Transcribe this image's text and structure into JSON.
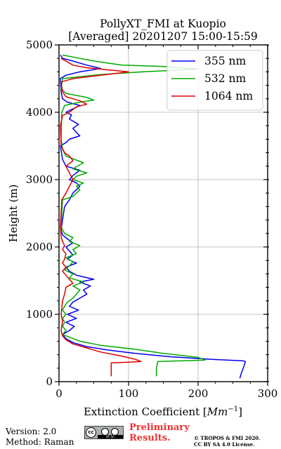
{
  "chart_data": {
    "type": "line",
    "title": "PollyXT_FMI at Kuopio",
    "subtitle": "[Averaged] 20201207 15:00-15:59",
    "xlabel": "Extinction Coefficient [Mm⁻¹]",
    "xlabel_main": "Extinction Coefficient [",
    "xlabel_unit": "Mm",
    "xlabel_exp": "−1",
    "xlabel_close": "]",
    "ylabel": "Height (m)",
    "xlim": [
      0,
      300
    ],
    "ylim": [
      0,
      5000
    ],
    "xticks": [
      0,
      100,
      200,
      300
    ],
    "yticks": [
      0,
      1000,
      2000,
      3000,
      4000,
      5000
    ],
    "grid": true,
    "legend_position": "top-right",
    "series": [
      {
        "name": "355 nm",
        "color": "#0000ee",
        "points": [
          [
            260,
            50
          ],
          [
            262,
            120
          ],
          [
            265,
            200
          ],
          [
            268,
            300
          ],
          [
            264,
            310
          ],
          [
            220,
            330
          ],
          [
            160,
            370
          ],
          [
            110,
            420
          ],
          [
            70,
            470
          ],
          [
            40,
            520
          ],
          [
            20,
            580
          ],
          [
            10,
            640
          ],
          [
            5,
            700
          ],
          [
            15,
            760
          ],
          [
            22,
            820
          ],
          [
            10,
            880
          ],
          [
            25,
            940
          ],
          [
            12,
            1000
          ],
          [
            28,
            1060
          ],
          [
            15,
            1120
          ],
          [
            20,
            1180
          ],
          [
            30,
            1240
          ],
          [
            40,
            1300
          ],
          [
            35,
            1360
          ],
          [
            45,
            1420
          ],
          [
            30,
            1480
          ],
          [
            50,
            1520
          ],
          [
            25,
            1580
          ],
          [
            15,
            1640
          ],
          [
            10,
            1700
          ],
          [
            25,
            1760
          ],
          [
            12,
            1820
          ],
          [
            20,
            1880
          ],
          [
            15,
            1940
          ],
          [
            10,
            2000
          ],
          [
            20,
            2060
          ],
          [
            12,
            2120
          ],
          [
            5,
            2180
          ],
          [
            3,
            2250
          ],
          [
            5,
            2400
          ],
          [
            8,
            2600
          ],
          [
            15,
            2700
          ],
          [
            20,
            2800
          ],
          [
            30,
            2900
          ],
          [
            25,
            2950
          ],
          [
            15,
            3000
          ],
          [
            20,
            3060
          ],
          [
            30,
            3140
          ],
          [
            10,
            3200
          ],
          [
            5,
            3300
          ],
          [
            2,
            3500
          ],
          [
            10,
            3550
          ],
          [
            15,
            3600
          ],
          [
            30,
            3650
          ],
          [
            25,
            3700
          ],
          [
            20,
            3760
          ],
          [
            28,
            3820
          ],
          [
            15,
            3900
          ],
          [
            18,
            3960
          ],
          [
            10,
            4000
          ],
          [
            20,
            4050
          ],
          [
            30,
            4100
          ],
          [
            12,
            4150
          ],
          [
            5,
            4200
          ],
          [
            3,
            4300
          ],
          [
            2,
            4500
          ],
          [
            10,
            4550
          ],
          [
            30,
            4600
          ],
          [
            60,
            4650
          ],
          [
            40,
            4700
          ],
          [
            20,
            4760
          ],
          [
            5,
            4800
          ],
          [
            2,
            4850
          ]
        ]
      },
      {
        "name": "532 nm",
        "color": "#00aa00",
        "points": [
          [
            140,
            80
          ],
          [
            140,
            200
          ],
          [
            142,
            300
          ],
          [
            180,
            310
          ],
          [
            210,
            320
          ],
          [
            200,
            360
          ],
          [
            150,
            420
          ],
          [
            110,
            480
          ],
          [
            60,
            540
          ],
          [
            30,
            600
          ],
          [
            15,
            660
          ],
          [
            5,
            700
          ],
          [
            10,
            760
          ],
          [
            5,
            820
          ],
          [
            8,
            880
          ],
          [
            5,
            940
          ],
          [
            10,
            1000
          ],
          [
            5,
            1060
          ],
          [
            8,
            1120
          ],
          [
            12,
            1180
          ],
          [
            20,
            1240
          ],
          [
            25,
            1300
          ],
          [
            30,
            1360
          ],
          [
            20,
            1420
          ],
          [
            35,
            1480
          ],
          [
            15,
            1540
          ],
          [
            20,
            1600
          ],
          [
            8,
            1660
          ],
          [
            15,
            1720
          ],
          [
            20,
            1780
          ],
          [
            10,
            1840
          ],
          [
            25,
            1900
          ],
          [
            20,
            1960
          ],
          [
            30,
            2020
          ],
          [
            15,
            2080
          ],
          [
            20,
            2140
          ],
          [
            8,
            2200
          ],
          [
            3,
            2300
          ],
          [
            5,
            2700
          ],
          [
            20,
            2750
          ],
          [
            30,
            2850
          ],
          [
            25,
            2900
          ],
          [
            35,
            2950
          ],
          [
            20,
            3000
          ],
          [
            25,
            3050
          ],
          [
            40,
            3100
          ],
          [
            20,
            3160
          ],
          [
            35,
            3250
          ],
          [
            10,
            3350
          ],
          [
            5,
            3450
          ],
          [
            3,
            3600
          ],
          [
            4,
            4000
          ],
          [
            8,
            4100
          ],
          [
            30,
            4150
          ],
          [
            50,
            4180
          ],
          [
            40,
            4220
          ],
          [
            10,
            4280
          ],
          [
            3,
            4350
          ],
          [
            5,
            4500
          ],
          [
            60,
            4560
          ],
          [
            120,
            4600
          ],
          [
            200,
            4640
          ],
          [
            150,
            4680
          ],
          [
            90,
            4700
          ],
          [
            50,
            4760
          ],
          [
            30,
            4800
          ],
          [
            5,
            4850
          ]
        ]
      },
      {
        "name": "1064 nm",
        "color": "#dd0000",
        "points": [
          [
            75,
            80
          ],
          [
            75,
            280
          ],
          [
            100,
            290
          ],
          [
            118,
            300
          ],
          [
            110,
            330
          ],
          [
            90,
            380
          ],
          [
            60,
            440
          ],
          [
            40,
            500
          ],
          [
            20,
            560
          ],
          [
            10,
            620
          ],
          [
            5,
            680
          ],
          [
            3,
            760
          ],
          [
            5,
            900
          ],
          [
            3,
            1000
          ],
          [
            5,
            1200
          ],
          [
            8,
            1300
          ],
          [
            10,
            1400
          ],
          [
            20,
            1460
          ],
          [
            15,
            1520
          ],
          [
            10,
            1580
          ],
          [
            5,
            1640
          ],
          [
            10,
            1700
          ],
          [
            5,
            1760
          ],
          [
            8,
            1820
          ],
          [
            10,
            1900
          ],
          [
            5,
            1960
          ],
          [
            8,
            2020
          ],
          [
            5,
            2080
          ],
          [
            3,
            2150
          ],
          [
            2,
            2300
          ],
          [
            4,
            2700
          ],
          [
            10,
            2800
          ],
          [
            15,
            2900
          ],
          [
            20,
            3000
          ],
          [
            15,
            3100
          ],
          [
            10,
            3200
          ],
          [
            20,
            3280
          ],
          [
            15,
            3350
          ],
          [
            8,
            3400
          ],
          [
            3,
            3500
          ],
          [
            2,
            3800
          ],
          [
            5,
            3950
          ],
          [
            15,
            4000
          ],
          [
            25,
            4080
          ],
          [
            40,
            4120
          ],
          [
            30,
            4170
          ],
          [
            10,
            4230
          ],
          [
            5,
            4300
          ],
          [
            3,
            4450
          ],
          [
            20,
            4500
          ],
          [
            60,
            4550
          ],
          [
            100,
            4600
          ],
          [
            70,
            4630
          ],
          [
            40,
            4660
          ],
          [
            20,
            4700
          ],
          [
            10,
            4760
          ],
          [
            3,
            4800
          ]
        ]
      }
    ]
  },
  "footer": {
    "version": "Version: 2.0",
    "method": "Method: Raman",
    "preliminary_line1": "Preliminary",
    "preliminary_line2": "Results.",
    "copyright_line1": "© TROPOS & FMI 2020.",
    "copyright_line2": "CC BY SA 4.0 License.",
    "cc_badge_text": "BY SA"
  }
}
